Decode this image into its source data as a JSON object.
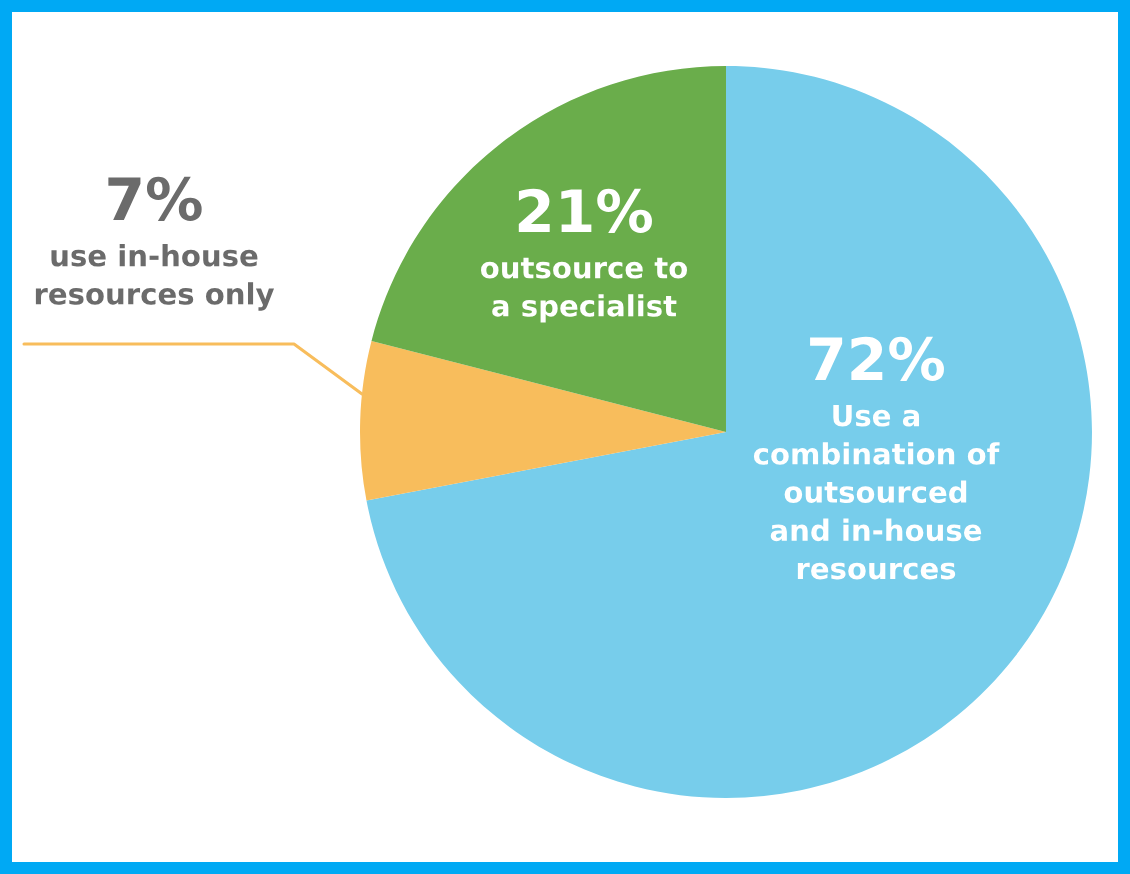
{
  "chart_data": {
    "type": "pie",
    "categories": [
      "Use a\ncombination of\noutsourced\nand in-house\nresources",
      "use in-house\nresources only",
      "outsource to\na specialist"
    ],
    "values": [
      72,
      7,
      21
    ],
    "colors": [
      "#77cdeb",
      "#f8bd5c",
      "#6aad4b"
    ],
    "value_labels": [
      "72%",
      "7%",
      "21%"
    ]
  }
}
